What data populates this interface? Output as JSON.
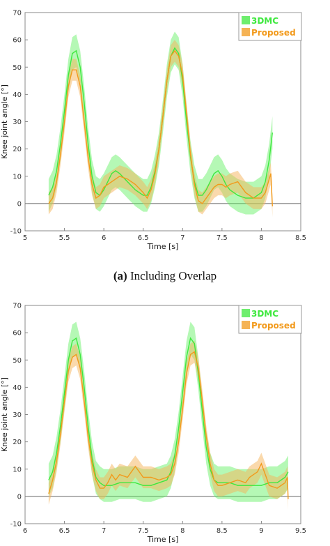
{
  "caption": {
    "label": "(a)",
    "text": "Including Overlap"
  },
  "colors": {
    "dmc": "#3ee83e",
    "proposed": "#f29a1c",
    "dmc_band": "#5cf05c",
    "proposed_band": "#f6b45a"
  },
  "chart_data": [
    {
      "type": "line",
      "xlabel": "Time [s]",
      "ylabel": "Knee joint angle [°]",
      "xlim": [
        5,
        8.5
      ],
      "ylim": [
        -10,
        70
      ],
      "xticks": [
        "5",
        "5.5",
        "6",
        "6.5",
        "7",
        "7.5",
        "8",
        "8.5"
      ],
      "yticks": [
        "-10",
        "0",
        "10",
        "20",
        "30",
        "40",
        "50",
        "60",
        "70"
      ],
      "legend_position": "top-right",
      "series": [
        {
          "name": "3DMC",
          "band": 6,
          "x": [
            5.3,
            5.35,
            5.4,
            5.45,
            5.5,
            5.55,
            5.6,
            5.65,
            5.7,
            5.75,
            5.8,
            5.85,
            5.9,
            5.95,
            6.0,
            6.05,
            6.1,
            6.15,
            6.2,
            6.3,
            6.4,
            6.5,
            6.55,
            6.6,
            6.65,
            6.7,
            6.75,
            6.8,
            6.85,
            6.9,
            6.95,
            7.0,
            7.05,
            7.1,
            7.15,
            7.2,
            7.25,
            7.3,
            7.35,
            7.4,
            7.45,
            7.5,
            7.55,
            7.6,
            7.7,
            7.8,
            7.9,
            8.0,
            8.05,
            8.1,
            8.14
          ],
          "y": [
            3,
            6,
            12,
            22,
            34,
            47,
            55,
            56,
            50,
            37,
            22,
            10,
            4,
            3,
            5,
            8,
            11,
            12,
            11,
            8,
            5,
            3,
            3,
            6,
            12,
            20,
            32,
            45,
            54,
            57,
            55,
            45,
            30,
            17,
            8,
            3,
            3,
            5,
            8,
            11,
            12,
            10,
            7,
            5,
            3,
            2,
            2,
            4,
            8,
            16,
            26
          ]
        },
        {
          "name": "Proposed",
          "band": 4,
          "x": [
            5.3,
            5.35,
            5.4,
            5.45,
            5.5,
            5.55,
            5.6,
            5.65,
            5.7,
            5.75,
            5.8,
            5.85,
            5.9,
            5.95,
            6.0,
            6.05,
            6.1,
            6.15,
            6.2,
            6.3,
            6.4,
            6.5,
            6.55,
            6.6,
            6.65,
            6.7,
            6.75,
            6.8,
            6.85,
            6.9,
            6.95,
            7.0,
            7.05,
            7.1,
            7.15,
            7.2,
            7.25,
            7.3,
            7.35,
            7.4,
            7.45,
            7.5,
            7.55,
            7.6,
            7.7,
            7.8,
            7.9,
            8.0,
            8.05,
            8.1,
            8.12,
            8.14
          ],
          "y": [
            0,
            2,
            8,
            18,
            30,
            43,
            49,
            49,
            43,
            30,
            17,
            7,
            2,
            3,
            6,
            7,
            8,
            9,
            10,
            9,
            7,
            4,
            2,
            5,
            11,
            20,
            32,
            45,
            54,
            56,
            54,
            47,
            33,
            18,
            7,
            1,
            0,
            2,
            4,
            6,
            7,
            7,
            6,
            7,
            8,
            4,
            2,
            2,
            4,
            9,
            11,
            -1
          ]
        }
      ]
    },
    {
      "type": "line",
      "xlabel": "Time [s]",
      "ylabel": "Knee joint angle [°]",
      "xlim": [
        6,
        9.5
      ],
      "ylim": [
        -10,
        70
      ],
      "xticks": [
        "6",
        "6.5",
        "7",
        "7.5",
        "8",
        "8.5",
        "9",
        "9.5"
      ],
      "yticks": [
        "-10",
        "0",
        "10",
        "20",
        "30",
        "40",
        "50",
        "60",
        "70"
      ],
      "legend_position": "top-right",
      "series": [
        {
          "name": "3DMC",
          "band": 6,
          "x": [
            6.3,
            6.35,
            6.4,
            6.45,
            6.5,
            6.55,
            6.6,
            6.65,
            6.7,
            6.75,
            6.8,
            6.85,
            6.9,
            6.95,
            7.0,
            7.05,
            7.1,
            7.2,
            7.3,
            7.4,
            7.5,
            7.6,
            7.7,
            7.8,
            7.85,
            7.9,
            7.95,
            8.0,
            8.05,
            8.1,
            8.15,
            8.2,
            8.25,
            8.3,
            8.35,
            8.4,
            8.45,
            8.5,
            8.6,
            8.7,
            8.8,
            8.9,
            9.0,
            9.1,
            9.2,
            9.3,
            9.34
          ],
          "y": [
            6,
            9,
            16,
            26,
            38,
            50,
            57,
            58,
            52,
            40,
            26,
            14,
            7,
            5,
            4,
            4,
            4,
            5,
            5,
            5,
            4,
            4,
            5,
            6,
            9,
            15,
            25,
            38,
            51,
            58,
            56,
            45,
            31,
            18,
            10,
            6,
            5,
            5,
            5,
            4,
            4,
            4,
            4,
            5,
            5,
            7,
            9
          ]
        },
        {
          "name": "Proposed",
          "band": 4,
          "x": [
            6.3,
            6.35,
            6.4,
            6.45,
            6.5,
            6.55,
            6.6,
            6.65,
            6.7,
            6.75,
            6.8,
            6.85,
            6.9,
            6.95,
            7.0,
            7.05,
            7.1,
            7.15,
            7.2,
            7.3,
            7.35,
            7.4,
            7.45,
            7.5,
            7.6,
            7.7,
            7.8,
            7.85,
            7.9,
            7.95,
            8.0,
            8.05,
            8.1,
            8.15,
            8.2,
            8.25,
            8.3,
            8.35,
            8.4,
            8.45,
            8.5,
            8.6,
            8.7,
            8.8,
            8.85,
            8.9,
            8.95,
            9.0,
            9.05,
            9.1,
            9.2,
            9.3,
            9.33,
            9.34
          ],
          "y": [
            1,
            6,
            13,
            23,
            35,
            46,
            51,
            52,
            47,
            35,
            22,
            12,
            6,
            3,
            3,
            5,
            8,
            6,
            8,
            7,
            9,
            11,
            9,
            7,
            7,
            6,
            7,
            8,
            12,
            20,
            32,
            45,
            52,
            53,
            47,
            35,
            22,
            12,
            6,
            4,
            4,
            5,
            6,
            5,
            7,
            8,
            9,
            12,
            8,
            4,
            3,
            5,
            7,
            -1
          ]
        }
      ]
    }
  ]
}
